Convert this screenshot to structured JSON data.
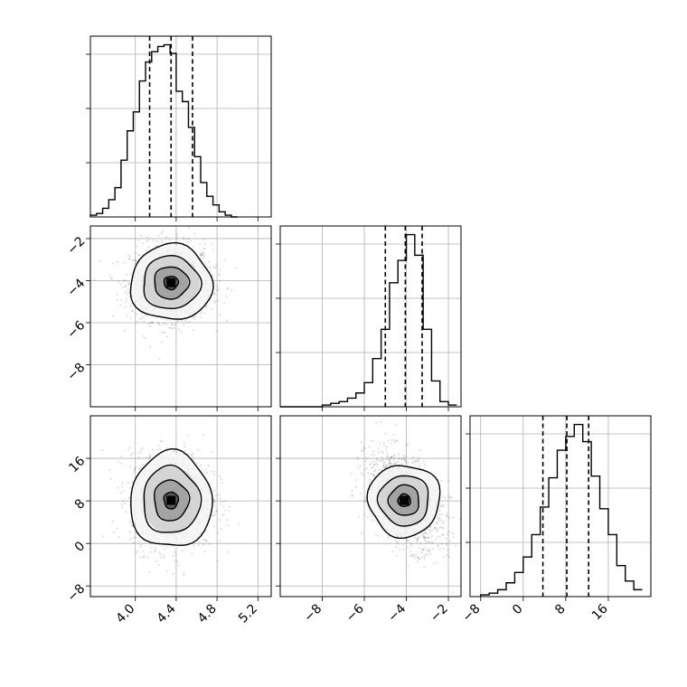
{
  "chart_data": {
    "type": "corner",
    "parameters": [
      {
        "id": "p0",
        "range": [
          3.56,
          5.33
        ],
        "ticks": [
          4.0,
          4.4,
          4.8,
          5.2
        ],
        "tick_labels": [
          "4.0",
          "4.4",
          "4.8",
          "5.2"
        ],
        "quantiles": [
          4.14,
          4.35,
          4.56
        ],
        "mean": 4.35,
        "sd": 0.2
      },
      {
        "id": "p1",
        "range": [
          -10.0,
          -1.4
        ],
        "ticks": [
          -8,
          -6,
          -4,
          -2
        ],
        "tick_labels": [
          "−8",
          "−6",
          "−4",
          "−2"
        ],
        "quantiles": [
          -5.0,
          -4.05,
          -3.25
        ],
        "mean": -4.1,
        "sd": 0.9
      },
      {
        "id": "p2",
        "range": [
          -10.0,
          24.0
        ],
        "ticks": [
          -8,
          0,
          8,
          16
        ],
        "tick_labels": [
          "−8",
          "0",
          "8",
          "16"
        ],
        "quantiles": [
          3.7,
          8.2,
          12.3
        ],
        "mean": 8.1,
        "sd": 4.5
      }
    ],
    "histograms": [
      {
        "param": "p0",
        "bin_edges": [
          3.56,
          3.62,
          3.68,
          3.74,
          3.8,
          3.86,
          3.92,
          3.98,
          4.04,
          4.1,
          4.16,
          4.22,
          4.28,
          4.34,
          4.4,
          4.46,
          4.52,
          4.58,
          4.64,
          4.7,
          4.76,
          4.82,
          4.88,
          4.94,
          5.0
        ],
        "counts": [
          1,
          2,
          5,
          10,
          17,
          33,
          50,
          61,
          79,
          90,
          96,
          99,
          100,
          95,
          73,
          67,
          52,
          35,
          20,
          12,
          7,
          3,
          1,
          0
        ]
      },
      {
        "param": "p1",
        "bin_edges": [
          -10.0,
          -9.6,
          -9.2,
          -8.8,
          -8.4,
          -8.0,
          -7.6,
          -7.2,
          -6.8,
          -6.4,
          -6.0,
          -5.6,
          -5.2,
          -4.8,
          -4.4,
          -4.0,
          -3.6,
          -3.2,
          -2.8,
          -2.4,
          -2.0,
          -1.6
        ],
        "counts": [
          0,
          0,
          0,
          0,
          0,
          1,
          2,
          3,
          5,
          8,
          14,
          28,
          45,
          72,
          85,
          100,
          88,
          45,
          15,
          3,
          1
        ]
      },
      {
        "param": "p2",
        "bin_edges": [
          -8,
          -6.4,
          -4.8,
          -3.2,
          -1.6,
          0,
          1.6,
          3.2,
          4.8,
          6.4,
          8.0,
          9.6,
          11.2,
          12.8,
          14.4,
          16.0,
          17.6,
          19.2,
          20.8,
          22.4
        ],
        "counts": [
          1,
          2,
          4,
          8,
          14,
          23,
          36,
          52,
          69,
          85,
          93,
          100,
          90,
          70,
          51,
          36,
          18,
          9,
          4
        ]
      }
    ],
    "panels_2d": [
      {
        "x": "p0",
        "y": "p1",
        "levels": [
          0.3,
          0.6,
          0.85,
          0.97
        ]
      },
      {
        "x": "p0",
        "y": "p2",
        "levels": [
          0.3,
          0.6,
          0.85,
          0.97
        ]
      },
      {
        "x": "p1",
        "y": "p2",
        "levels": [
          0.3,
          0.6,
          0.85,
          0.97
        ],
        "correlation": -0.45
      }
    ],
    "grid": true,
    "scatter_points_per_panel": 1400,
    "colors": {
      "points": "#000000",
      "lines": "#000000",
      "grid": "#b0b0b0"
    }
  }
}
